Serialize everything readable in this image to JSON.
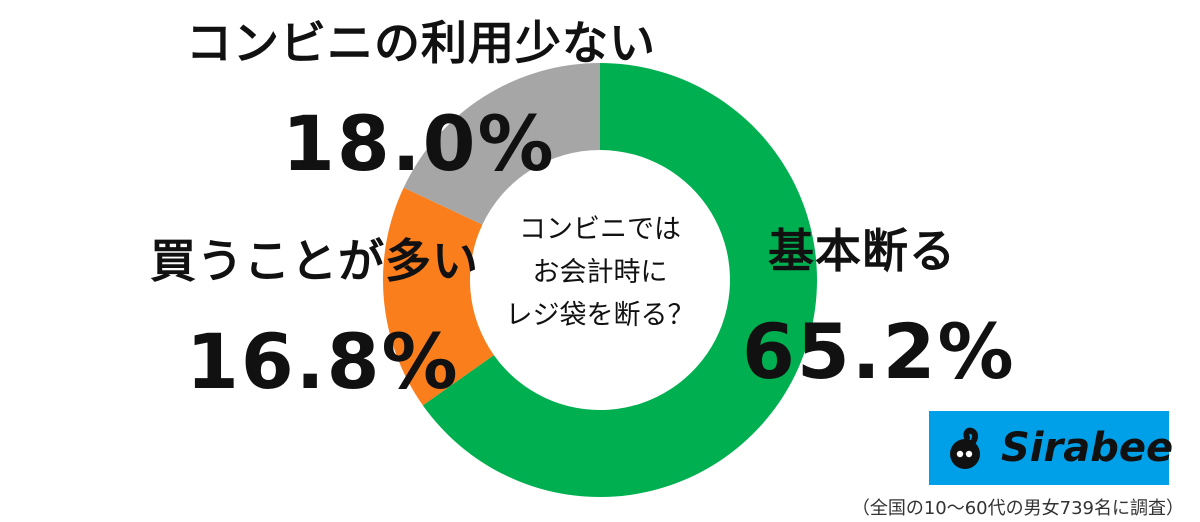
{
  "chart_data": {
    "type": "pie",
    "variant": "donut",
    "center_text": [
      "コンビニでは",
      "お会計時に",
      "レジ袋を断る？"
    ],
    "slices": [
      {
        "label": "基本断る",
        "value": 65.2,
        "value_label": "65.2%",
        "color": "#00b050"
      },
      {
        "label": "買うことが多い",
        "value": 16.8,
        "value_label": "16.8%",
        "color": "#fa7e1b"
      },
      {
        "label": "コンビニの利用少ない",
        "value": 18.0,
        "value_label": "18.0%",
        "color": "#a6a6a6"
      }
    ],
    "start": "12 o'clock",
    "direction": "clockwise"
  },
  "brand": {
    "logo_text": "Sirabee",
    "logo_color": "#00a0e9"
  },
  "footnote": "（全国の10〜60代の男女739名に調査）"
}
